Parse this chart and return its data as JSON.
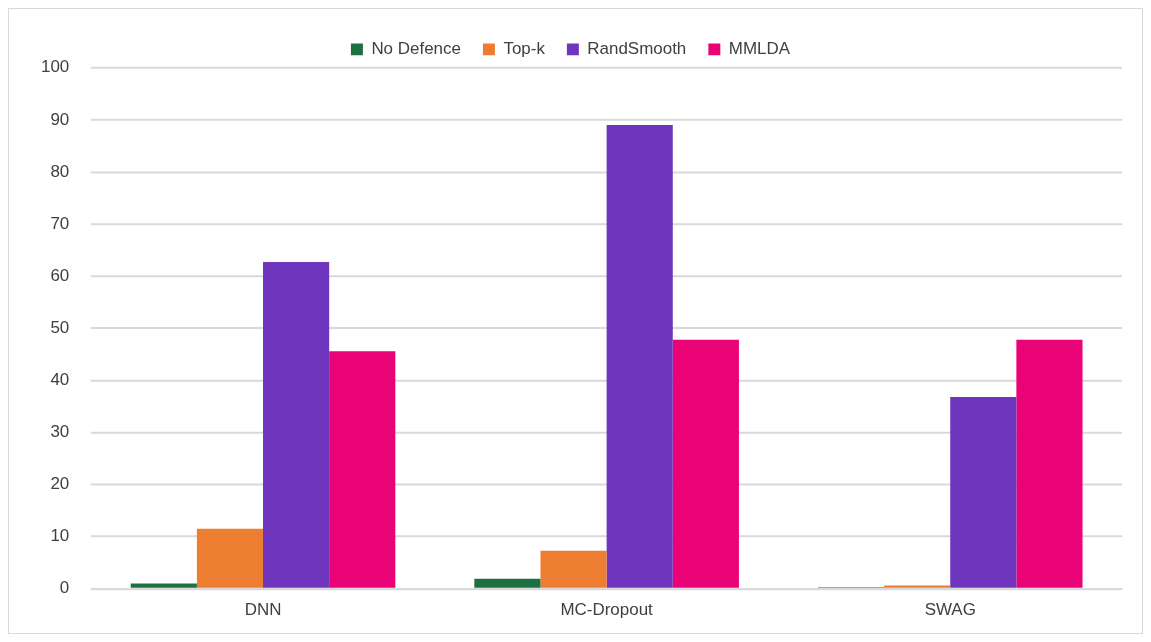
{
  "chart_data": {
    "type": "bar",
    "categories": [
      "DNN",
      "MC-Dropout",
      "SWAG"
    ],
    "series": [
      {
        "name": "No Defence",
        "color": "#1e7042",
        "values": [
          1.0,
          1.9,
          0.3
        ]
      },
      {
        "name": "Top-k",
        "color": "#ed7d31",
        "values": [
          11.5,
          7.3,
          0.6
        ]
      },
      {
        "name": "RandSmooth",
        "color": "#6f35bc",
        "values": [
          62.7,
          89,
          36.8
        ]
      },
      {
        "name": "MMLDA",
        "color": "#ea0277",
        "values": [
          45.6,
          47.8,
          47.8
        ]
      }
    ],
    "ylim": [
      0,
      100
    ],
    "yticks": [
      0,
      10,
      20,
      30,
      40,
      50,
      60,
      70,
      80,
      90,
      100
    ],
    "grid": "y",
    "legend": "top"
  }
}
